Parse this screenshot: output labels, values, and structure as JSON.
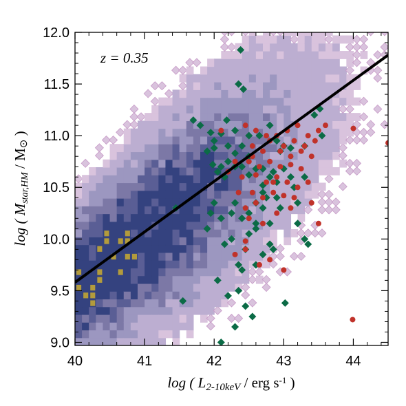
{
  "chart_data": {
    "type": "scatter",
    "title": "",
    "annotation": "z = 0.35",
    "xlabel": {
      "prefix": "log ( ",
      "main": "L",
      "sub": "2-10keV",
      "unit": " / erg s",
      "sup": "-1",
      "suffix": " )"
    },
    "ylabel": {
      "prefix": "log ( ",
      "main": "M",
      "sub": "star,HM",
      "unit": " / M",
      "sun": "⊙",
      "suffix": " )"
    },
    "xlim": [
      40,
      44.5
    ],
    "ylim": [
      8.97,
      12.0
    ],
    "xticks": [
      40,
      41,
      42,
      43,
      44
    ],
    "xtick_labels": [
      "40",
      "41",
      "42",
      "43",
      "44"
    ],
    "yticks": [
      9.0,
      9.5,
      10.0,
      10.5,
      11.0,
      11.5,
      12.0
    ],
    "ytick_labels": [
      "9.0",
      "9.5",
      "10.0",
      "10.5",
      "11.0",
      "11.5",
      "12.0"
    ],
    "grid": false,
    "colors": {
      "density_low": "#d9c3dd",
      "density_mid": "#7c78a6",
      "density_high": "#34427f",
      "density_peak": "#b39b3c",
      "contour_edge": "#c79ac7",
      "green": "#0b6b46",
      "red": "#c0322a",
      "fit": "#000000"
    },
    "fit_line": {
      "x": [
        40,
        44.5
      ],
      "y": [
        9.58,
        11.78
      ]
    },
    "series": [
      {
        "marker": "diamond",
        "color": "#0b6b46",
        "x": [
          42.38,
          42.35,
          42.42,
          43.52,
          43.44,
          41.7,
          42.18,
          41.8,
          42.8,
          42.3,
          41.95,
          42.1,
          42.5,
          42.65,
          42.0,
          42.2,
          42.4,
          42.0,
          41.9,
          42.3,
          42.9,
          43.0,
          43.1,
          43.3,
          42.5,
          42.2,
          41.98,
          42.1,
          42.3,
          42.4,
          42.6,
          42.7,
          42.85,
          43.0,
          42.05,
          42.15,
          42.5,
          42.8,
          43.1,
          43.3,
          42.9,
          42.7,
          43.15,
          41.45,
          42.0,
          42.3,
          42.6,
          42.75,
          42.9,
          41.95,
          42.25,
          42.5,
          42.7,
          42.95,
          43.2,
          42.1,
          42.4,
          42.6,
          42.8,
          42.5,
          42.25,
          41.9,
          42.15,
          42.45,
          42.8,
          42.35,
          42.6,
          43.3,
          43.35,
          42.85,
          42.2,
          42.35,
          42.45,
          43.02,
          41.55,
          42.3,
          42.55,
          42.1,
          43.55,
          42.95,
          42.7,
          42.6,
          42.7,
          43.2,
          42.05,
          42.4
        ],
        "y": [
          11.83,
          11.5,
          11.45,
          11.26,
          11.2,
          11.15,
          11.15,
          11.1,
          11.1,
          11.05,
          11.03,
          11.02,
          11.0,
          11.0,
          10.95,
          10.9,
          10.9,
          10.88,
          10.85,
          10.83,
          10.95,
          10.9,
          10.88,
          10.9,
          10.8,
          10.75,
          10.72,
          10.7,
          10.7,
          10.7,
          10.68,
          10.68,
          10.65,
          10.68,
          10.65,
          10.6,
          10.62,
          10.6,
          10.6,
          10.6,
          10.55,
          10.52,
          10.5,
          10.3,
          10.35,
          10.35,
          10.35,
          10.4,
          10.4,
          10.25,
          10.25,
          10.25,
          10.3,
          10.3,
          10.35,
          10.2,
          10.2,
          10.15,
          10.15,
          10.05,
          10.0,
          10.1,
          9.95,
          9.9,
          9.95,
          9.75,
          9.75,
          10.0,
          9.95,
          9.9,
          9.45,
          9.5,
          9.35,
          9.38,
          9.4,
          9.15,
          9.25,
          9.0,
          11.0,
          10.85,
          10.45,
          10.1,
          9.85,
          10.15,
          9.6,
          9.7
        ]
      },
      {
        "marker": "circle",
        "color": "#c0322a",
        "x": [
          42.45,
          42.6,
          42.75,
          42.9,
          43.05,
          43.2,
          43.35,
          43.5,
          43.6,
          42.8,
          43.0,
          43.15,
          43.3,
          43.45,
          42.7,
          42.55,
          42.95,
          43.1,
          43.25,
          43.4,
          42.3,
          42.5,
          42.65,
          42.8,
          42.95,
          43.1,
          43.25,
          42.2,
          42.4,
          42.6,
          42.75,
          42.9,
          43.05,
          43.2,
          43.35,
          42.35,
          42.55,
          42.7,
          42.85,
          43.0,
          43.15,
          42.45,
          42.6,
          42.9,
          43.1,
          42.5,
          42.7,
          43.5,
          44.5,
          44.0,
          43.99,
          42.45,
          42.8,
          43.0,
          42.3,
          42.65,
          43.4,
          42.1,
          42.55,
          42.85,
          42.45
        ],
        "y": [
          11.1,
          11.05,
          11.0,
          11.0,
          11.05,
          11.1,
          11.0,
          11.05,
          11.1,
          10.95,
          10.9,
          10.95,
          10.9,
          10.95,
          10.85,
          10.8,
          10.85,
          10.8,
          10.85,
          10.8,
          10.75,
          10.75,
          10.7,
          10.75,
          10.7,
          10.72,
          10.68,
          10.65,
          10.6,
          10.62,
          10.55,
          10.6,
          10.55,
          10.5,
          10.55,
          10.45,
          10.45,
          10.4,
          10.45,
          10.42,
          10.4,
          10.3,
          10.35,
          10.25,
          10.3,
          10.2,
          10.15,
          10.15,
          10.93,
          11.07,
          9.22,
          9.9,
          9.8,
          9.7,
          9.85,
          9.75,
          10.35,
          11.05,
          10.9,
          10.55,
          9.98
        ]
      }
    ]
  }
}
